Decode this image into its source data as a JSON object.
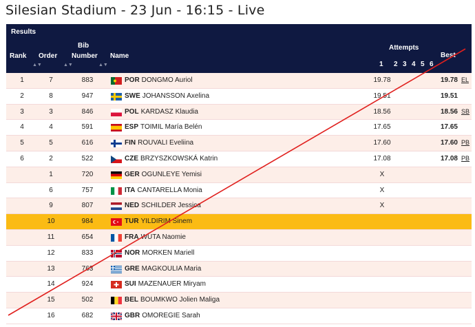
{
  "page": {
    "title": "Silesian Stadium - 23 Jun - 16:15 - Live"
  },
  "table": {
    "section_title": "Results",
    "columns": {
      "rank": "Rank",
      "order": "Order",
      "bib_line1": "Bib",
      "bib_line2": "Number",
      "name": "Name",
      "attempts": "Attempts",
      "attempt_numbers": [
        "1",
        "2",
        "3",
        "4",
        "5",
        "6"
      ],
      "best": "Best"
    },
    "rows": [
      {
        "rank": "1",
        "order": "7",
        "bib": "883",
        "country": "POR",
        "name": "DONGMO Auriol",
        "a1": "19.78",
        "best": "19.78",
        "note": "EL"
      },
      {
        "rank": "2",
        "order": "8",
        "bib": "947",
        "country": "SWE",
        "name": "JOHANSSON Axelina",
        "a1": "19.51",
        "best": "19.51",
        "note": ""
      },
      {
        "rank": "3",
        "order": "3",
        "bib": "846",
        "country": "POL",
        "name": "KARDASZ Klaudia",
        "a1": "18.56",
        "best": "18.56",
        "note": "SB"
      },
      {
        "rank": "4",
        "order": "4",
        "bib": "591",
        "country": "ESP",
        "name": "TOIMIL María Belén",
        "a1": "17.65",
        "best": "17.65",
        "note": ""
      },
      {
        "rank": "5",
        "order": "5",
        "bib": "616",
        "country": "FIN",
        "name": "ROUVALI Eveliina",
        "a1": "17.60",
        "best": "17.60",
        "note": "PB"
      },
      {
        "rank": "6",
        "order": "2",
        "bib": "522",
        "country": "CZE",
        "name": "BRZYSZKOWSKÁ Katrin",
        "a1": "17.08",
        "best": "17.08",
        "note": "PB"
      },
      {
        "rank": "",
        "order": "1",
        "bib": "720",
        "country": "GER",
        "name": "OGUNLEYE Yemisi",
        "a1": "X",
        "best": "",
        "note": ""
      },
      {
        "rank": "",
        "order": "6",
        "bib": "757",
        "country": "ITA",
        "name": "CANTARELLA Monia",
        "a1": "X",
        "best": "",
        "note": ""
      },
      {
        "rank": "",
        "order": "9",
        "bib": "807",
        "country": "NED",
        "name": "SCHILDER Jessica",
        "a1": "X",
        "best": "",
        "note": ""
      },
      {
        "rank": "",
        "order": "10",
        "bib": "984",
        "country": "TUR",
        "name": "YILDIRIM Sinem",
        "a1": "",
        "best": "",
        "note": "",
        "highlight": true
      },
      {
        "rank": "",
        "order": "11",
        "bib": "654",
        "country": "FRA",
        "name": "WUTA Naomie",
        "a1": "",
        "best": "",
        "note": ""
      },
      {
        "rank": "",
        "order": "12",
        "bib": "833",
        "country": "NOR",
        "name": "MORKEN Mariell",
        "a1": "",
        "best": "",
        "note": ""
      },
      {
        "rank": "",
        "order": "13",
        "bib": "763",
        "country": "GRE",
        "name": "MAGKOULIA Maria",
        "a1": "",
        "best": "",
        "note": ""
      },
      {
        "rank": "",
        "order": "14",
        "bib": "924",
        "country": "SUI",
        "name": "MAZENAUER Miryam",
        "a1": "",
        "best": "",
        "note": ""
      },
      {
        "rank": "",
        "order": "15",
        "bib": "502",
        "country": "BEL",
        "name": "BOUMKWO Jolien Maliga",
        "a1": "",
        "best": "",
        "note": ""
      },
      {
        "rank": "",
        "order": "16",
        "bib": "682",
        "country": "GBR",
        "name": "OMOREGIE Sarah",
        "a1": "",
        "best": "",
        "note": ""
      }
    ]
  },
  "colors": {
    "header_bg": "#0f1941",
    "row_tint": "#fdeee8",
    "highlight": "#fbbb14",
    "annotation_line": "#e0201e"
  }
}
